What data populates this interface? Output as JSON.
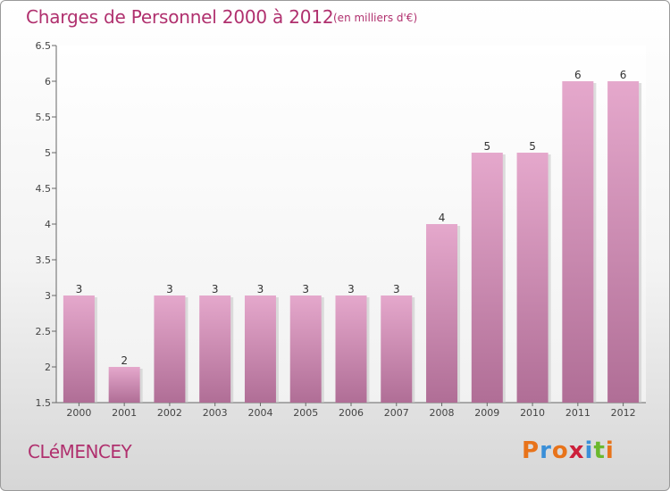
{
  "header": {
    "title": "Charges de Personnel 2000 à 2012",
    "subtitle": "(en milliers d'€)"
  },
  "footer": {
    "commune": "CLéMENCEY",
    "logo_text": "Proxiti",
    "logo_colors": [
      "#e8731a",
      "#3a8fd8",
      "#e8731a",
      "#cc1f3a",
      "#3a8fd8",
      "#6bb82e",
      "#e8731a"
    ]
  },
  "chart_data": {
    "type": "bar",
    "categories": [
      "2000",
      "2001",
      "2002",
      "2003",
      "2004",
      "2005",
      "2006",
      "2007",
      "2008",
      "2009",
      "2010",
      "2011",
      "2012"
    ],
    "values": [
      3,
      2,
      3,
      3,
      3,
      3,
      3,
      3,
      4,
      5,
      5,
      6,
      6
    ],
    "labels": [
      "3",
      "2",
      "3",
      "3",
      "3",
      "3",
      "3",
      "3",
      "4",
      "5",
      "5",
      "6",
      "6"
    ],
    "title": "Charges de Personnel 2000 à 2012",
    "ylim": [
      1.5,
      6.5
    ],
    "yticks": [
      "1.5",
      "2",
      "2.5",
      "3",
      "3.5",
      "4",
      "4.5",
      "5",
      "5.5",
      "6",
      "6.5"
    ],
    "grid": false,
    "bar_color_top": "#e5a8cc",
    "bar_color_bottom": "#b06e96"
  }
}
